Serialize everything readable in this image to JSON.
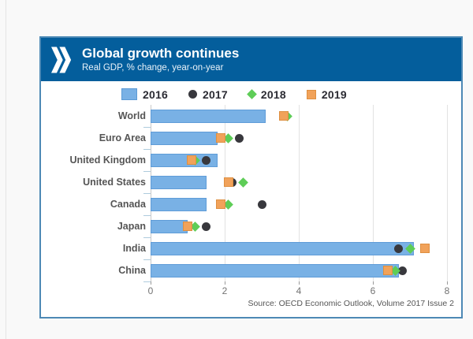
{
  "header": {
    "title": "Global growth continues",
    "subtitle": "Real GDP, % change, year-on-year",
    "logo": "oecd-double-chevron",
    "background": "#045e9c"
  },
  "chart_data": {
    "type": "bar",
    "orientation": "horizontal",
    "title": "Global growth continues",
    "subtitle": "Real GDP, % change, year-on-year",
    "categories": [
      "World",
      "Euro Area",
      "United Kingdom",
      "United States",
      "Canada",
      "Japan",
      "India",
      "China"
    ],
    "series": [
      {
        "name": "2016",
        "style": "bar",
        "color": "#79b1e5",
        "values": [
          3.1,
          1.8,
          1.8,
          1.5,
          1.5,
          1.0,
          7.1,
          6.7
        ]
      },
      {
        "name": "2017",
        "style": "dot",
        "color": "#38383d",
        "values": [
          3.6,
          2.4,
          1.5,
          2.2,
          3.0,
          1.5,
          6.7,
          6.8
        ]
      },
      {
        "name": "2018",
        "style": "diamond",
        "color": "#5ecd57",
        "values": [
          3.7,
          2.1,
          1.2,
          2.5,
          2.1,
          1.2,
          7.0,
          6.6
        ]
      },
      {
        "name": "2019",
        "style": "square",
        "color": "#f1a25a",
        "values": [
          3.6,
          1.9,
          1.1,
          2.1,
          1.9,
          1.0,
          7.4,
          6.4
        ]
      }
    ],
    "xlim": [
      0,
      8
    ],
    "xticks": [
      0,
      2,
      4,
      6,
      8
    ],
    "grid": "vertical",
    "legend_position": "top",
    "xlabel": "",
    "ylabel": ""
  },
  "source": "Source: OECD Economic Outlook, Volume 2017 Issue 2"
}
